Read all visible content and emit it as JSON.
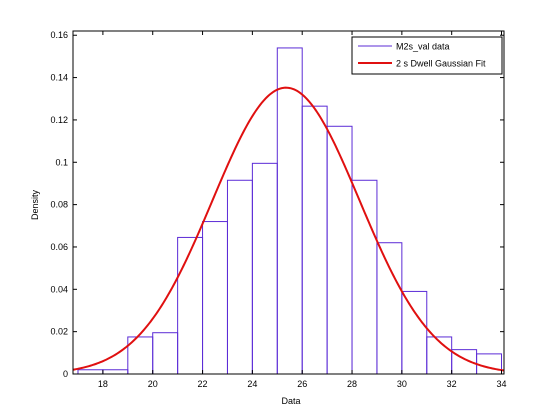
{
  "chart_data": {
    "type": "bar",
    "title": "",
    "xlabel": "Data",
    "ylabel": "Density",
    "xlim": [
      16.8,
      34.1
    ],
    "ylim": [
      0,
      0.162
    ],
    "xticks": [
      18,
      20,
      22,
      24,
      26,
      28,
      30,
      32,
      34
    ],
    "yticks": [
      0,
      0.02,
      0.04,
      0.06,
      0.08,
      0.1,
      0.12,
      0.14,
      0.16
    ],
    "xtick_labels": [
      "18",
      "20",
      "22",
      "24",
      "26",
      "28",
      "30",
      "32",
      "34"
    ],
    "ytick_labels": [
      "0",
      "0.02",
      "0.04",
      "0.06",
      "0.08",
      "0.1",
      "0.12",
      "0.14",
      "0.16"
    ],
    "grid": false,
    "legend_position": "top-right",
    "histogram": {
      "name": "M2s_val data",
      "color": "#5b2bd6",
      "bins": [
        {
          "x0": 17,
          "x1": 18,
          "y": 0.002
        },
        {
          "x0": 18,
          "x1": 19,
          "y": 0.002
        },
        {
          "x0": 19,
          "x1": 20,
          "y": 0.0175
        },
        {
          "x0": 20,
          "x1": 21,
          "y": 0.0195
        },
        {
          "x0": 21,
          "x1": 22,
          "y": 0.0645
        },
        {
          "x0": 22,
          "x1": 23,
          "y": 0.072
        },
        {
          "x0": 23,
          "x1": 24,
          "y": 0.0915
        },
        {
          "x0": 24,
          "x1": 25,
          "y": 0.0995
        },
        {
          "x0": 25,
          "x1": 26,
          "y": 0.154
        },
        {
          "x0": 26,
          "x1": 27,
          "y": 0.1265
        },
        {
          "x0": 27,
          "x1": 28,
          "y": 0.117
        },
        {
          "x0": 28,
          "x1": 29,
          "y": 0.0915
        },
        {
          "x0": 29,
          "x1": 30,
          "y": 0.062
        },
        {
          "x0": 30,
          "x1": 31,
          "y": 0.039
        },
        {
          "x0": 31,
          "x1": 32,
          "y": 0.0175
        },
        {
          "x0": 32,
          "x1": 33,
          "y": 0.0115
        },
        {
          "x0": 33,
          "x1": 34,
          "y": 0.0095
        }
      ]
    },
    "fit": {
      "name": "2 s Dwell Gaussian Fit",
      "color": "#e01010",
      "mean": 25.35,
      "sigma": 2.95
    }
  }
}
